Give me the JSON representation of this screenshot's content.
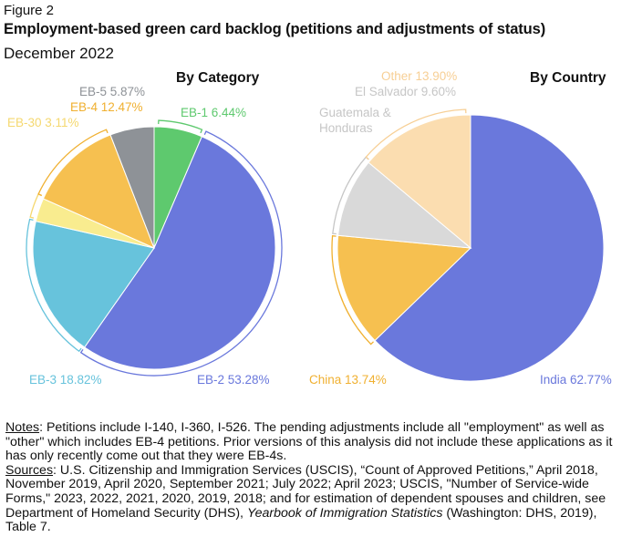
{
  "figure_label": "Figure 2",
  "title": "Employment-based green card backlog (petitions and adjustments of status)",
  "subtitle": "December 2022",
  "chart_data": [
    {
      "type": "pie",
      "title": "By Category",
      "slices": [
        {
          "label": "EB-1",
          "value": 6.44,
          "color": "#5ec96e"
        },
        {
          "label": "EB-2",
          "value": 53.28,
          "color": "#6a78dc"
        },
        {
          "label": "EB-3",
          "value": 18.82,
          "color": "#67c3dc"
        },
        {
          "label": "EB-30",
          "value": 3.11,
          "color": "#f9ec8f"
        },
        {
          "label": "EB-4",
          "value": 12.47,
          "color": "#f6c050"
        },
        {
          "label": "EB-5",
          "value": 5.87,
          "color": "#8e9297"
        }
      ]
    },
    {
      "type": "pie",
      "title": "By Country",
      "slices": [
        {
          "label": "India",
          "value": 62.77,
          "color": "#6a78dc"
        },
        {
          "label": "China",
          "value": 13.74,
          "color": "#f6c050"
        },
        {
          "label": "El Salvador",
          "value": 9.6,
          "color": "#d9d9d9"
        },
        {
          "label": "Other",
          "value": 13.9,
          "color": "#fbddb0"
        }
      ]
    }
  ],
  "labels": {
    "eb1": "EB-1 6.44%",
    "eb2": "EB-2 53.28%",
    "eb3": "EB-3 18.82%",
    "eb30": "EB-30 3.11%",
    "eb4": "EB-4 12.47%",
    "eb5": "EB-5 5.87%",
    "india": "India 62.77%",
    "china": "China 13.74%",
    "guatemala_line1": "Guatemala &",
    "guatemala_line2": "Honduras",
    "el_salvador": "El Salvador 9.60%",
    "other": "Other 13.90%"
  },
  "label_colors": {
    "eb1": "#5ec96e",
    "eb2": "#6a78dc",
    "eb3": "#67c3dc",
    "eb30": "#f5d870",
    "eb4": "#f0b030",
    "eb5": "#8e9297",
    "india": "#6a78dc",
    "china": "#f0b030",
    "guatemala": "#c6c6c6",
    "el_salvador": "#c6c6c6",
    "other": "#f7cf95"
  },
  "notes": {
    "notes_heading": "Notes",
    "notes_text": ": Petitions include I-140, I-360, I-526. The pending adjustments include all \"employment\" as well as \"other\" which includes EB-4 petitions. Prior versions of this analysis did not include these applications as it has only recently come out that they were EB-4s.",
    "sources_heading": "Sources",
    "sources_text": ": U.S. Citizenship and Immigration Services (USCIS), “Count of Approved Petitions,” April 2018, November 2019, April 2020, September 2021; July 2022; April 2023; USCIS, \"Number of Service-wide Forms,\" 2023, 2022, 2021, 2020, 2019, 2018; and for estimation of dependent spouses and children, see Department of Homeland Security (DHS), ",
    "sources_italic": "Yearbook of Immigration Statistics",
    "sources_end": " (Washington: DHS, 2019), Table 7."
  }
}
